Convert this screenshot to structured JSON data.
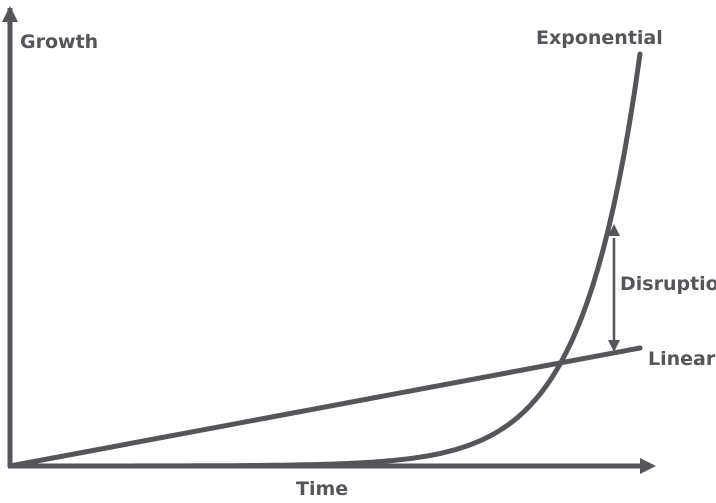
{
  "colors": {
    "ink": "#555659",
    "background": "#ffffff"
  },
  "chart_data": {
    "type": "line",
    "xlabel": "Time",
    "ylabel": "Growth",
    "grid": false,
    "axes_arrows": true,
    "series": [
      {
        "name": "Exponential",
        "shape": "exponential",
        "color": "#555659"
      },
      {
        "name": "Linear",
        "shape": "linear",
        "color": "#555659"
      }
    ],
    "annotations": [
      {
        "text": "Disruption",
        "kind": "double-arrow-gap",
        "between": [
          "Exponential",
          "Linear"
        ]
      }
    ]
  }
}
